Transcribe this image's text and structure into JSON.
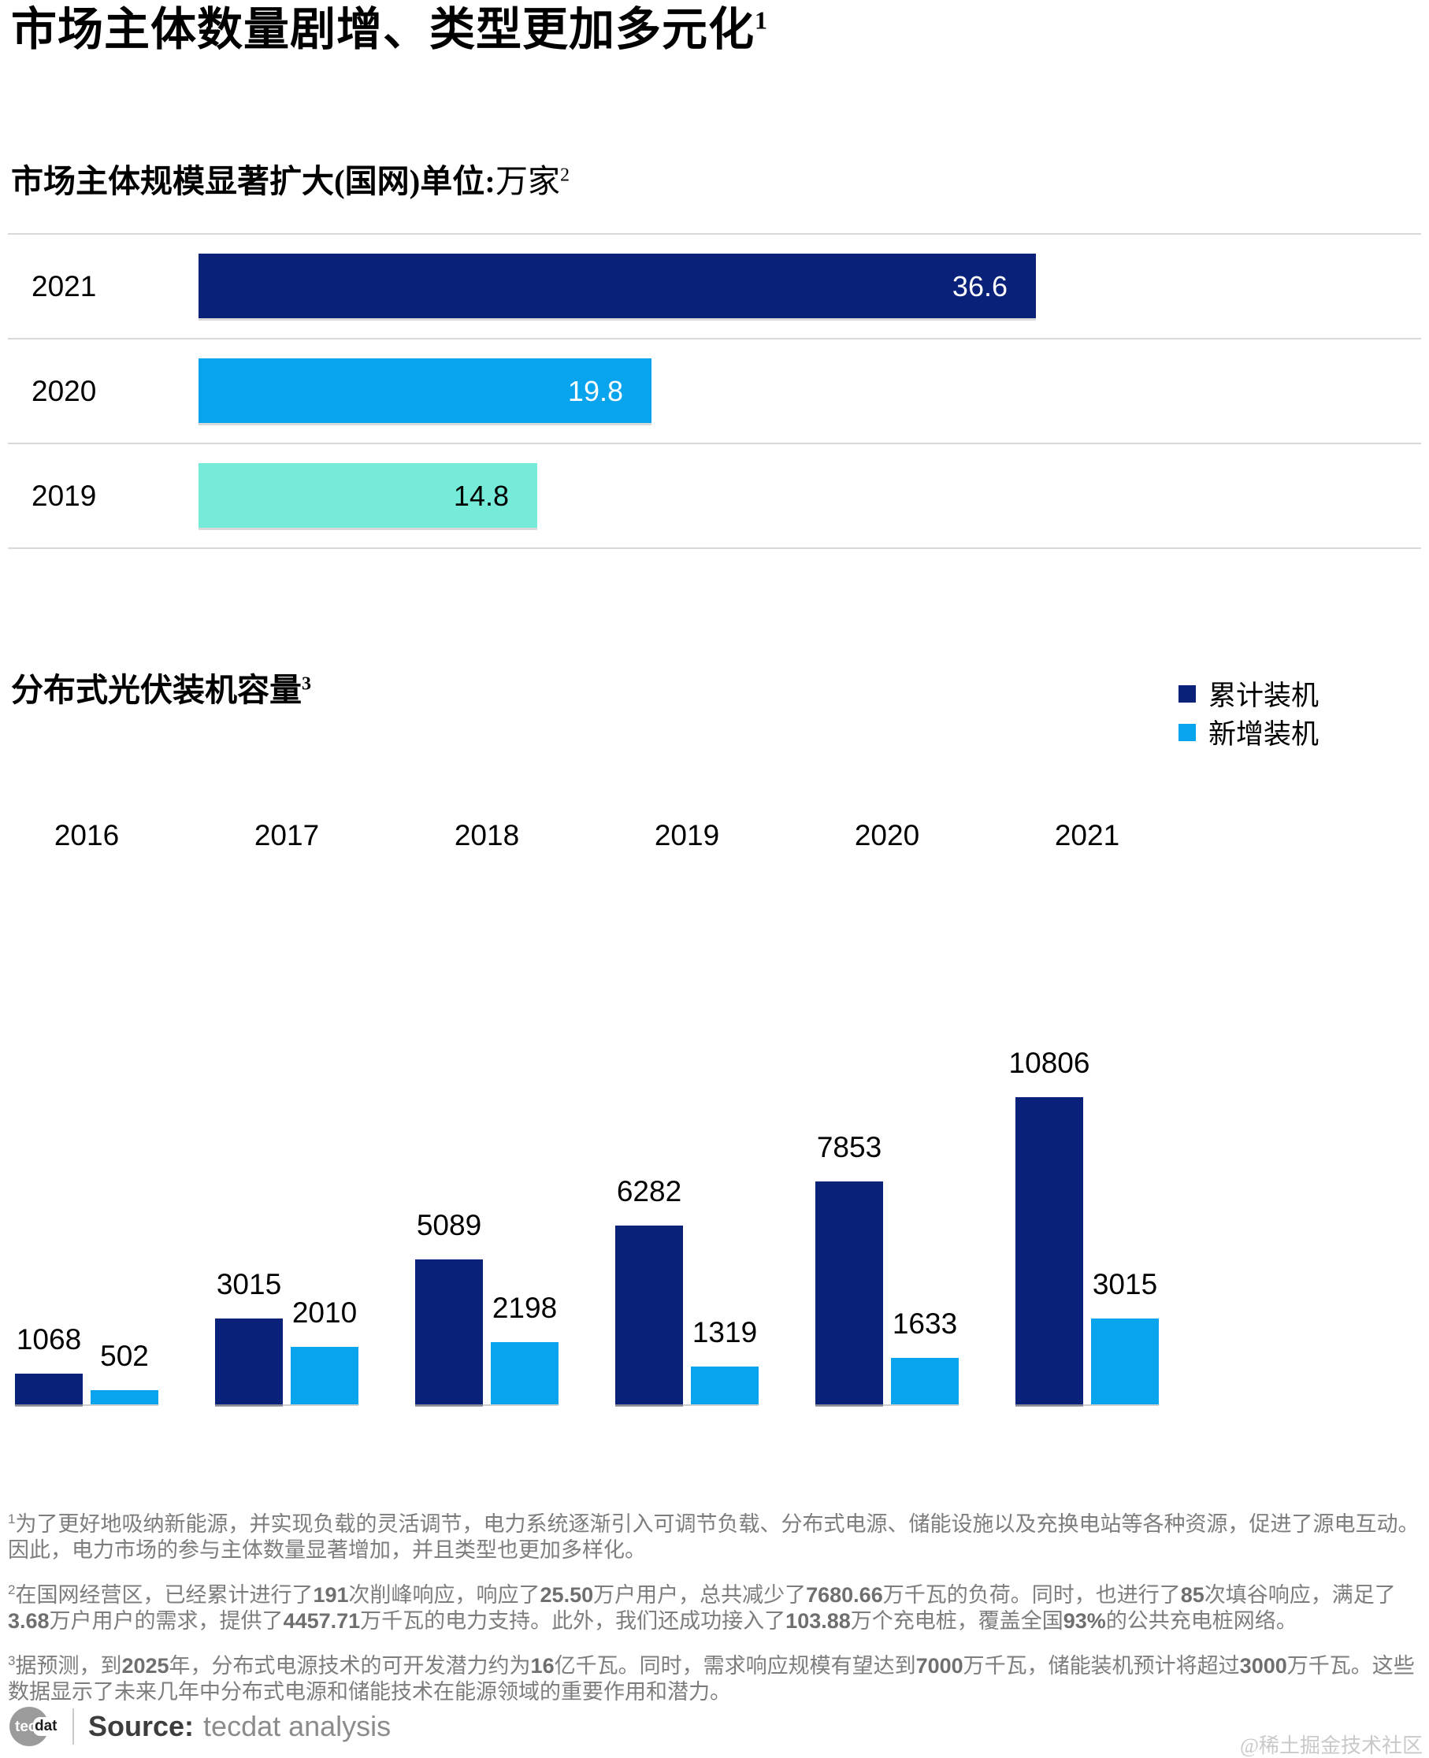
{
  "page": {
    "title": "市场主体数量剧增、类型更加多元化",
    "title_sup": "1",
    "watermark": "@稀土掘金技术社区"
  },
  "chart1": {
    "title_bold": "市场主体规模显著扩大(国网)单位:",
    "title_unit": "万家",
    "title_sup": "2",
    "rows": [
      {
        "year": "2021",
        "value": 36.6,
        "label": "36.6",
        "color": "#0a2179",
        "label_color": "#ffffff"
      },
      {
        "year": "2020",
        "value": 19.8,
        "label": "19.8",
        "color": "#09a4ee",
        "label_color": "#ffffff"
      },
      {
        "year": "2019",
        "value": 14.8,
        "label": "14.8",
        "color": "#76ebd9",
        "label_color": "#000000"
      }
    ]
  },
  "chart2": {
    "title": "分布式光伏装机容量",
    "title_sup": "3",
    "legend": [
      {
        "label": "累计装机",
        "color": "#0a2179"
      },
      {
        "label": "新增装机",
        "color": "#09a4ee"
      }
    ],
    "years": [
      "2016",
      "2017",
      "2018",
      "2019",
      "2020",
      "2021"
    ],
    "series": [
      {
        "name": "累计装机",
        "values": [
          1068,
          3015,
          5089,
          6282,
          7853,
          10806
        ]
      },
      {
        "name": "新增装机",
        "values": [
          502,
          2010,
          2198,
          1319,
          1633,
          3015
        ]
      }
    ]
  },
  "footnotes": [
    {
      "sup": "1",
      "text": "为了更好地吸纳新能源，并实现负载的灵活调节，电力系统逐渐引入可调节负载、分布式电源、储能设施以及充换电站等各种资源，促进了源电互动。因此，电力市场的参与主体数量显著增加，并且类型也更加多样化。"
    },
    {
      "sup": "2",
      "text": "在国网经营区，已经累计进行了191次削峰响应，响应了25.50万户用户，总共减少了7680.66万千瓦的负荷。同时，也进行了85次填谷响应，满足了3.68万户用户的需求，提供了4457.71万千瓦的电力支持。此外，我们还成功接入了103.88万个充电桩，覆盖全国93%的公共充电桩网络。"
    },
    {
      "sup": "3",
      "text": "据预测，到2025年，分布式电源技术的可开发潜力约为16亿千瓦。同时，需求响应规模有望达到7000万千瓦，储能装机预计将超过3000万千瓦。这些数据显示了未来几年中分布式电源和储能技术在能源领域的重要作用和潜力。"
    }
  ],
  "footer": {
    "logo_left": "tec",
    "logo_right": "dat",
    "source_label": "Source:",
    "source_value": "tecdat analysis"
  },
  "chart_data": [
    {
      "type": "bar",
      "orientation": "horizontal",
      "title": "市场主体规模显著扩大(国网)",
      "unit": "万家",
      "categories": [
        "2021",
        "2020",
        "2019"
      ],
      "values": [
        36.6,
        19.8,
        14.8
      ],
      "value_labels": [
        "36.6",
        "19.8",
        "14.8"
      ],
      "bar_colors": [
        "#0a2179",
        "#09a4ee",
        "#76ebd9"
      ],
      "xlim": [
        0,
        40
      ],
      "grid": "row-separators",
      "legend": false
    },
    {
      "type": "bar",
      "title": "分布式光伏装机容量",
      "categories": [
        "2016",
        "2017",
        "2018",
        "2019",
        "2020",
        "2021"
      ],
      "series": [
        {
          "name": "累计装机",
          "color": "#0a2179",
          "values": [
            1068,
            3015,
            5089,
            6282,
            7853,
            10806
          ]
        },
        {
          "name": "新增装机",
          "color": "#09a4ee",
          "values": [
            502,
            2010,
            2198,
            1319,
            1633,
            3015
          ]
        }
      ],
      "ylim": [
        0,
        10806
      ],
      "grid": false,
      "legend_position": "top-right",
      "value_labels": true
    }
  ]
}
